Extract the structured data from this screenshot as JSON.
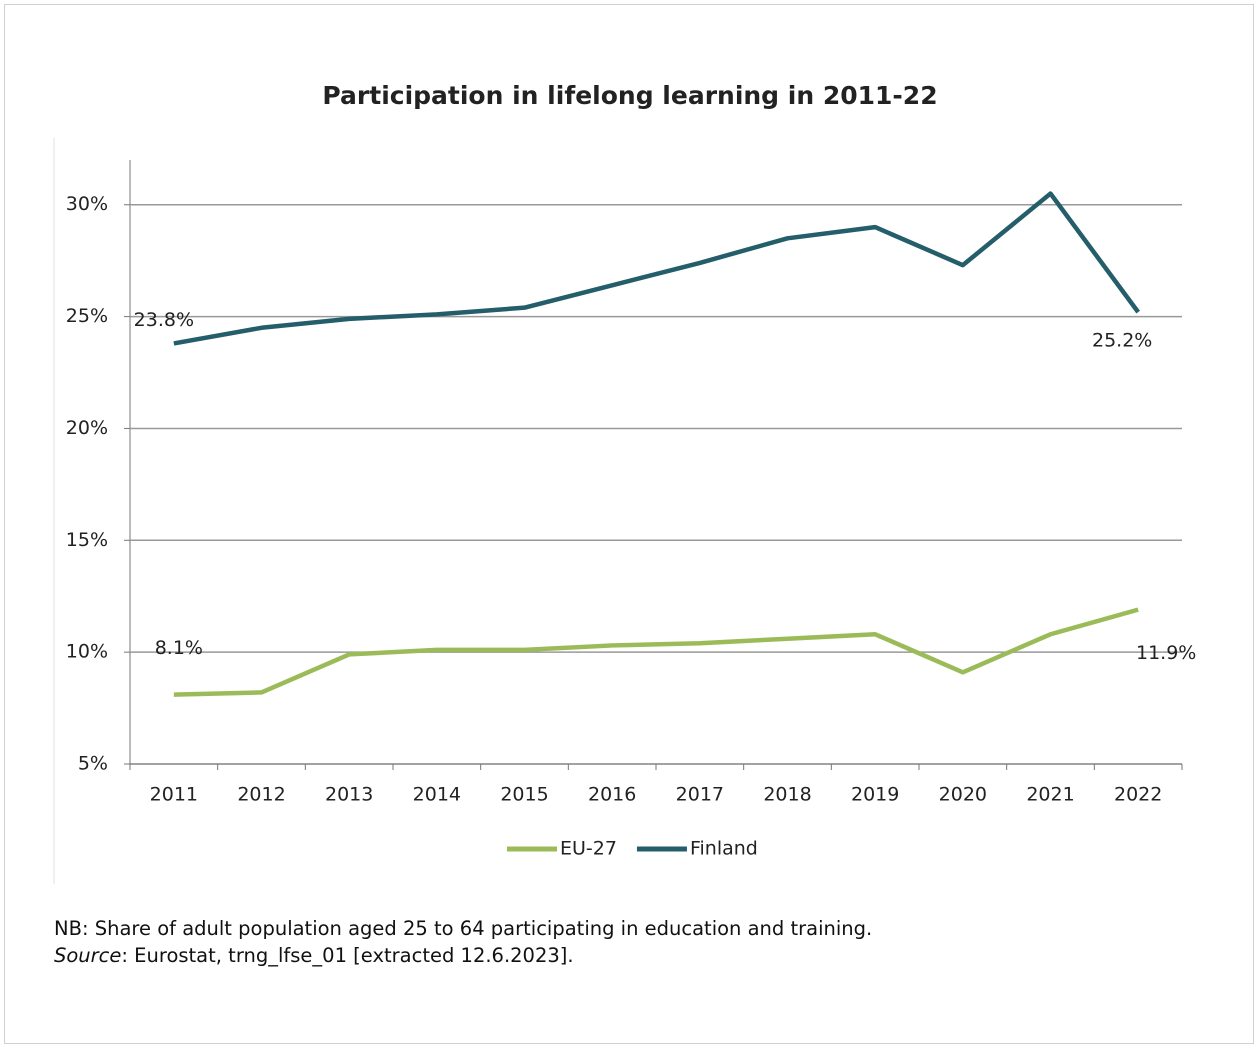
{
  "chart_data": {
    "type": "line",
    "title": "Participation in lifelong learning in 2011-22",
    "categories": [
      "2011",
      "2012",
      "2013",
      "2014",
      "2015",
      "2016",
      "2017",
      "2018",
      "2019",
      "2020",
      "2021",
      "2022"
    ],
    "series": [
      {
        "name": "EU-27",
        "color": "#9bbb59",
        "values": [
          8.1,
          8.2,
          9.9,
          10.1,
          10.1,
          10.3,
          10.4,
          10.6,
          10.8,
          9.1,
          10.8,
          11.9
        ],
        "value_labels": [
          "8.1%",
          null,
          null,
          null,
          null,
          null,
          null,
          null,
          null,
          null,
          null,
          "11.9%"
        ]
      },
      {
        "name": "Finland",
        "color": "#255e6b",
        "values": [
          23.8,
          24.5,
          24.9,
          25.1,
          25.4,
          26.4,
          27.4,
          28.5,
          29.0,
          27.3,
          30.5,
          25.2
        ],
        "value_labels": [
          "23.8%",
          null,
          null,
          null,
          null,
          null,
          null,
          null,
          null,
          null,
          null,
          "25.2%"
        ]
      }
    ],
    "ylim": [
      5,
      32
    ],
    "yticks": [
      {
        "value": 5,
        "label": "5%"
      },
      {
        "value": 10,
        "label": "10%"
      },
      {
        "value": 15,
        "label": "15%"
      },
      {
        "value": 20,
        "label": "20%"
      },
      {
        "value": 25,
        "label": "25%"
      },
      {
        "value": 30,
        "label": "30%"
      }
    ],
    "grid": true,
    "legend": "bottom"
  },
  "footnote": {
    "note": "NB: Share of adult population aged 25 to 64 participating in education and training.",
    "source_label": "Source",
    "source_text": ": Eurostat, trng_lfse_01 [extracted 12.6.2023]."
  }
}
